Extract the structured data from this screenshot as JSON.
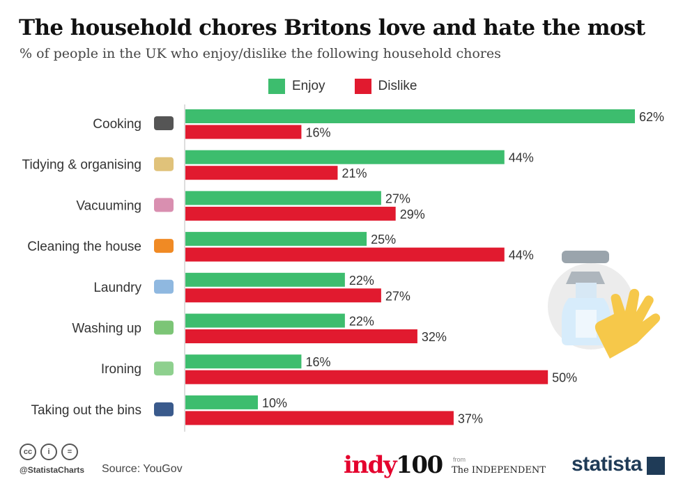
{
  "header": {
    "title": "The household chores Britons love and hate the most",
    "subtitle": "% of people in the UK who enjoy/dislike the following household chores"
  },
  "legend": [
    {
      "label": "Enjoy",
      "color": "#3dbd6e"
    },
    {
      "label": "Dislike",
      "color": "#e11a2f"
    }
  ],
  "chart_data": {
    "type": "bar",
    "orientation": "horizontal",
    "categories": [
      "Cooking",
      "Tidying & organising",
      "Vacuuming",
      "Cleaning the house",
      "Laundry",
      "Washing up",
      "Ironing",
      "Taking out the bins"
    ],
    "icons": [
      "pot-icon",
      "tidying-icon",
      "vacuum-icon",
      "spray-bottle-icon",
      "laundry-icon",
      "washing-up-icon",
      "iron-icon",
      "bin-icon"
    ],
    "series": [
      {
        "name": "Enjoy",
        "color": "#3dbd6e",
        "values": [
          62,
          44,
          27,
          25,
          22,
          22,
          16,
          10
        ]
      },
      {
        "name": "Dislike",
        "color": "#e11a2f",
        "values": [
          16,
          21,
          29,
          44,
          27,
          32,
          50,
          37
        ]
      }
    ],
    "value_suffix": "%",
    "xlim": [
      0,
      62
    ],
    "grid": false,
    "legend_position": "top"
  },
  "footer": {
    "handle": "@StatistaCharts",
    "source": "Source: YouGov",
    "indy_red": "indy",
    "indy_black": "100",
    "from": "from",
    "independent": "The INDEPENDENT",
    "statista": "statista"
  }
}
